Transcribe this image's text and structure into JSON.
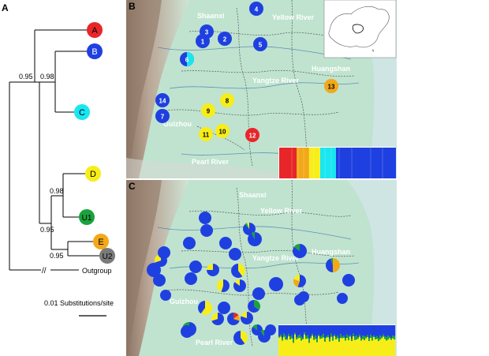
{
  "panels": {
    "a": "A",
    "b": "B",
    "c": "C"
  },
  "tree": {
    "support": [
      "0.95",
      "0.98",
      "0.98",
      "0.95",
      "0.95"
    ],
    "outgroup": "Outgroup",
    "break_mark": "//",
    "scale_label": "0.01 Substitutions/site",
    "clades": [
      {
        "label": "A",
        "color": "#e8262a",
        "text_color": "#000000"
      },
      {
        "label": "B",
        "color": "#1f40e0",
        "text_color": "#ffffff"
      },
      {
        "label": "C",
        "color": "#19e6f0",
        "text_color": "#000000"
      },
      {
        "label": "D",
        "color": "#f7ee19",
        "text_color": "#000000"
      },
      {
        "label": "U1",
        "color": "#1aa33c",
        "text_color": "#000000"
      },
      {
        "label": "E",
        "color": "#f2a818",
        "text_color": "#000000"
      },
      {
        "label": "U2",
        "color": "#7a7a7a",
        "text_color": "#000000"
      }
    ]
  },
  "map_b": {
    "labels": {
      "shaanxi": "Shaanxi",
      "yellow": "Yellow River",
      "huangshan": "Huangshan",
      "yangtze": "Yangtze River",
      "guizhou": "Guizhou",
      "pearl": "Pearl River"
    },
    "sites": [
      {
        "n": "1",
        "color": "#1f40e0"
      },
      {
        "n": "2",
        "color": "#1f40e0"
      },
      {
        "n": "3",
        "color": "#1f40e0"
      },
      {
        "n": "4",
        "color": "#1f40e0"
      },
      {
        "n": "5",
        "color": "#1f40e0"
      },
      {
        "n": "6",
        "color": "#1f40e0",
        "color2": "#19e6f0"
      },
      {
        "n": "7",
        "color": "#1f40e0"
      },
      {
        "n": "8",
        "color": "#f7ee19"
      },
      {
        "n": "9",
        "color": "#f7ee19"
      },
      {
        "n": "10",
        "color": "#f7ee19"
      },
      {
        "n": "11",
        "color": "#f7ee19"
      },
      {
        "n": "12",
        "color": "#e8262a"
      },
      {
        "n": "13",
        "color": "#f2a818"
      },
      {
        "n": "14",
        "color": "#1f40e0"
      }
    ]
  },
  "map_c": {
    "labels": {
      "shaanxi": "Shaanxi",
      "yellow": "Yellow River",
      "huangshan": "Huangshan",
      "yangtze": "Yangtze River",
      "guizhou": "Guizhou",
      "pearl": "Pearl River"
    }
  },
  "colors": {
    "blue": "#1f40e0",
    "yellow": "#f7ee19",
    "green": "#1aa33c",
    "orange": "#f2a818",
    "red": "#e8262a",
    "cyan": "#19e6f0",
    "land": "#bfe3cf",
    "hills": "#9b7f6a"
  }
}
